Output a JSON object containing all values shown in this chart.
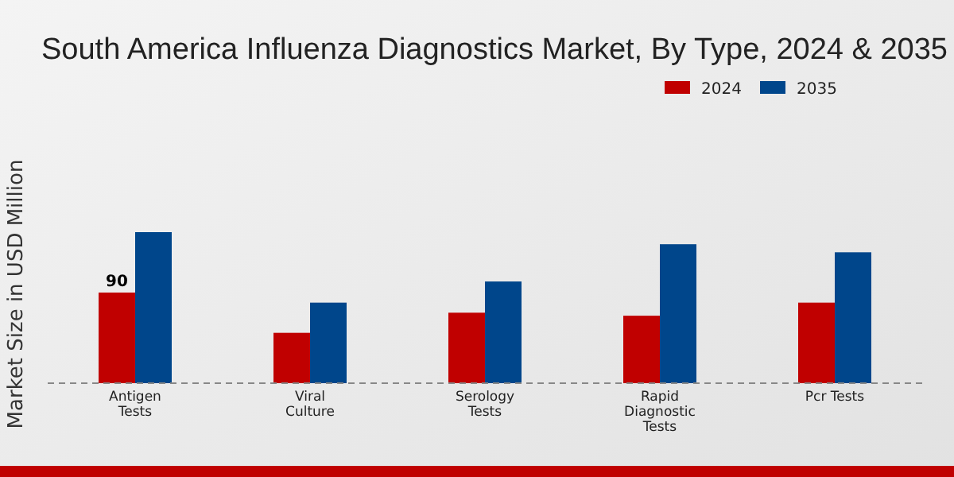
{
  "chart_data": {
    "type": "bar",
    "title": "South America Influenza Diagnostics Market, By Type, 2024 & 2035",
    "ylabel": "Market Size in USD Million",
    "categories": [
      "Antigen\nTests",
      "Viral\nCulture",
      "Serology\nTests",
      "Rapid\nDiagnostic\nTests",
      "Pcr Tests"
    ],
    "series": [
      {
        "name": "2024",
        "color": "#c00000",
        "values": [
          90,
          50,
          70,
          67,
          80
        ],
        "value_labels": [
          "90",
          null,
          null,
          null,
          null
        ]
      },
      {
        "name": "2035",
        "color": "#00468b",
        "values": [
          150,
          80,
          101,
          138,
          130
        ]
      }
    ],
    "legend": "top right",
    "grid": false
  }
}
